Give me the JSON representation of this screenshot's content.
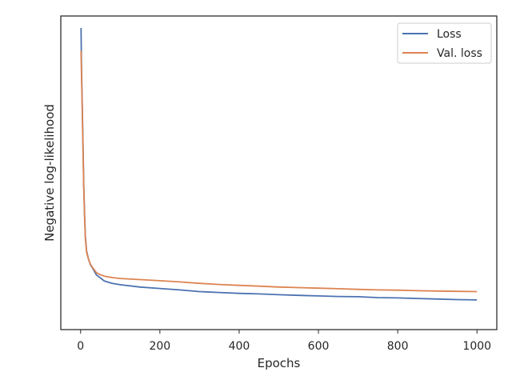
{
  "chart_data": {
    "type": "line",
    "title": "",
    "xlabel": "Epochs",
    "ylabel": "Negative log-likelihood",
    "xlim": [
      -50,
      1050
    ],
    "ylim": [
      0,
      100
    ],
    "x_ticks": [
      0,
      200,
      400,
      600,
      800,
      1000
    ],
    "y_ticks_shown": false,
    "grid": false,
    "legend_position": "top-right",
    "series": [
      {
        "name": "Loss",
        "color": "#4c72b0",
        "x": [
          1,
          2,
          3,
          5,
          8,
          10,
          12,
          15,
          20,
          25,
          30,
          40,
          50,
          60,
          80,
          100,
          150,
          200,
          250,
          300,
          350,
          400,
          450,
          500,
          550,
          600,
          650,
          700,
          750,
          800,
          850,
          900,
          950,
          1000
        ],
        "y": [
          100,
          88,
          80,
          66,
          45,
          35,
          27,
          22,
          19,
          17,
          16,
          13.5,
          12.5,
          11.4,
          10.6,
          10.1,
          9.3,
          8.8,
          8.3,
          7.7,
          7.4,
          7.1,
          6.9,
          6.6,
          6.4,
          6.2,
          6.0,
          5.9,
          5.6,
          5.5,
          5.3,
          5.1,
          4.9,
          4.8
        ]
      },
      {
        "name": "Val. loss",
        "color": "#dd8452",
        "x": [
          1,
          2,
          3,
          5,
          8,
          10,
          12,
          15,
          20,
          25,
          30,
          40,
          50,
          60,
          80,
          100,
          150,
          200,
          250,
          300,
          350,
          400,
          450,
          500,
          550,
          600,
          650,
          700,
          750,
          800,
          850,
          900,
          950,
          1000
        ],
        "y": [
          92,
          85,
          78,
          64,
          44,
          34,
          26.5,
          21.5,
          19,
          17.2,
          16.2,
          14.3,
          13.6,
          13.1,
          12.6,
          12.3,
          11.9,
          11.5,
          11.1,
          10.6,
          10.2,
          9.9,
          9.6,
          9.3,
          9.1,
          8.9,
          8.7,
          8.5,
          8.3,
          8.2,
          8.0,
          7.9,
          7.8,
          7.7
        ]
      }
    ]
  }
}
